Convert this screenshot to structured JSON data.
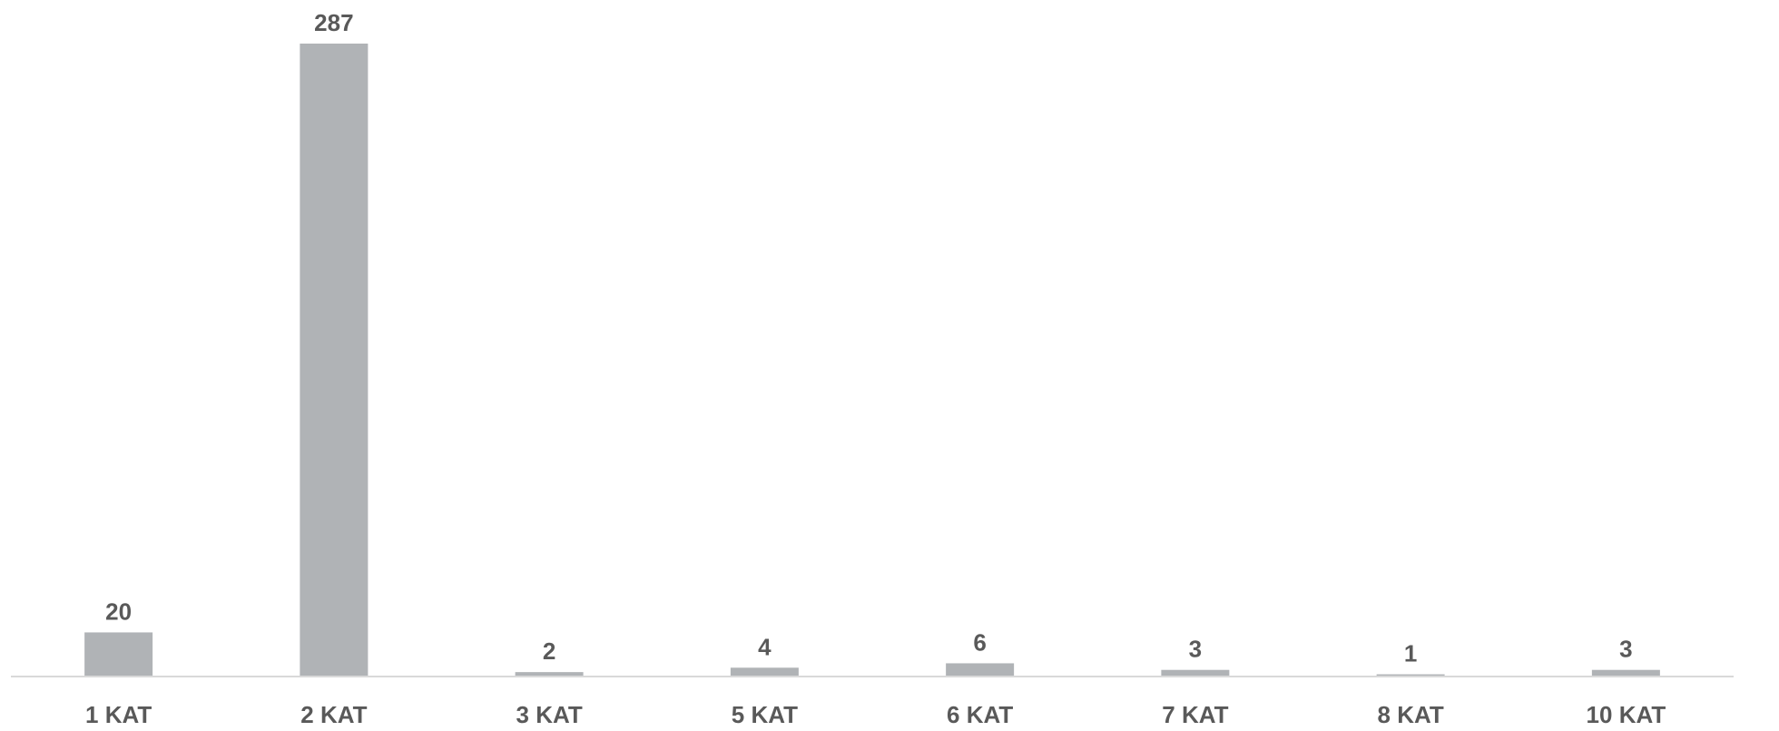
{
  "chart_data": {
    "type": "bar",
    "categories": [
      "1 KAT",
      "2 KAT",
      "3 KAT",
      "5 KAT",
      "6 KAT",
      "7 KAT",
      "8 KAT",
      "10 KAT"
    ],
    "values": [
      20,
      287,
      2,
      4,
      6,
      3,
      1,
      3
    ],
    "data_labels": [
      "20",
      "287",
      "2",
      "4",
      "6",
      "3",
      "1",
      "3"
    ],
    "title": "",
    "xlabel": "",
    "ylabel": "",
    "ylim": [
      0,
      287
    ],
    "grid": false,
    "legend": "none",
    "colors": {
      "bar": "#b0b3b6",
      "text": "#595959",
      "axis": "#d9d9d9"
    }
  }
}
